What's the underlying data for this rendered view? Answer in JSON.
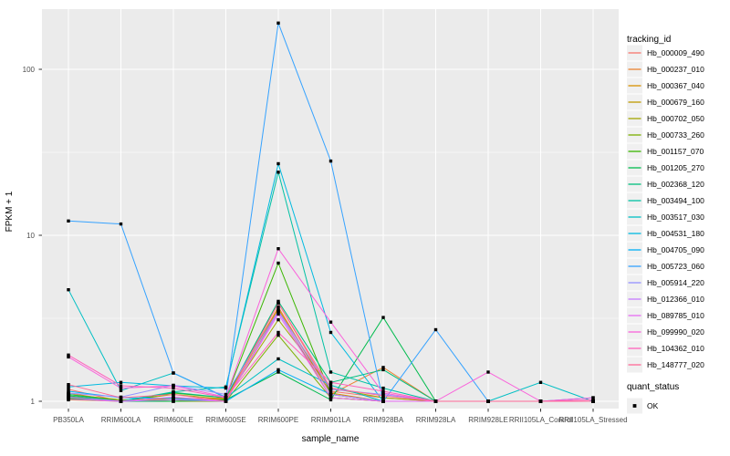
{
  "figure": {
    "background": "#FFFFFF",
    "panel_background": "#EBEBEB",
    "grid_color": "#FFFFFF",
    "tick_color": "#333333",
    "axis_text_color": "#4D4D4D",
    "title_color": "#000000",
    "point_color": "#000000",
    "legend_key_background": "#F0F0F0"
  },
  "chart_data": {
    "type": "line",
    "title": "",
    "xlabel": "sample_name",
    "ylabel": "FPKM + 1",
    "y_scale": "log10",
    "grid": true,
    "legend_position": "right",
    "y_ticks": [
      {
        "label": "1",
        "value": 1
      },
      {
        "label": "10",
        "value": 10
      },
      {
        "label": "100",
        "value": 100
      }
    ],
    "y_minor_ticks": [
      3.1623,
      31.623
    ],
    "ylim": [
      0.93,
      232
    ],
    "categories": [
      "PB350LA",
      "RRIM600LA",
      "RRIM600LE",
      "RRIM600SE",
      "RRIM600PE",
      "RRIM901LA",
      "RRIM928BA",
      "RRIM928LA",
      "RRIM928LE",
      "RRII105LA_Control",
      "RRII105LA_Stressed"
    ],
    "series": [
      {
        "name": "Hb_000009_490",
        "color": "#F8766D",
        "values": [
          1.18,
          1.0,
          1.02,
          1.05,
          3.9,
          1.15,
          1.05,
          1.0,
          1.0,
          1.0,
          1.0
        ]
      },
      {
        "name": "Hb_000237_010",
        "color": "#EA8331",
        "values": [
          1.12,
          1.0,
          1.05,
          1.02,
          3.7,
          1.1,
          1.6,
          1.0,
          1.0,
          1.0,
          1.0
        ]
      },
      {
        "name": "Hb_000367_040",
        "color": "#D89000",
        "values": [
          1.05,
          1.0,
          1.0,
          1.05,
          3.6,
          1.12,
          1.0,
          1.0,
          1.0,
          1.0,
          1.0
        ]
      },
      {
        "name": "Hb_000679_160",
        "color": "#C09B00",
        "values": [
          1.02,
          1.0,
          1.04,
          1.0,
          3.5,
          1.05,
          1.0,
          1.0,
          1.0,
          1.0,
          1.0
        ]
      },
      {
        "name": "Hb_000702_050",
        "color": "#A3A500",
        "values": [
          1.06,
          1.0,
          1.1,
          1.03,
          3.1,
          1.2,
          1.05,
          1.0,
          1.0,
          1.0,
          1.0
        ]
      },
      {
        "name": "Hb_000733_260",
        "color": "#7CAE00",
        "values": [
          1.1,
          1.02,
          1.0,
          1.0,
          2.5,
          1.05,
          1.0,
          1.0,
          1.0,
          1.0,
          1.0
        ]
      },
      {
        "name": "Hb_001157_070",
        "color": "#39B600",
        "values": [
          1.08,
          1.0,
          1.12,
          1.05,
          6.8,
          1.1,
          1.0,
          1.0,
          1.0,
          1.0,
          1.0
        ]
      },
      {
        "name": "Hb_001205_270",
        "color": "#00BB4E",
        "values": [
          1.04,
          1.0,
          1.0,
          1.02,
          1.5,
          1.02,
          3.2,
          1.0,
          1.0,
          1.0,
          1.0
        ]
      },
      {
        "name": "Hb_002368_120",
        "color": "#00BF7D",
        "values": [
          1.1,
          1.0,
          1.13,
          1.05,
          4.0,
          1.3,
          1.55,
          1.0,
          1.0,
          1.0,
          1.0
        ]
      },
      {
        "name": "Hb_003494_100",
        "color": "#00C1A3",
        "values": [
          1.07,
          1.0,
          1.14,
          1.22,
          24.0,
          1.5,
          1.2,
          1.0,
          1.0,
          1.0,
          1.0
        ]
      },
      {
        "name": "Hb_003517_030",
        "color": "#00BFC4",
        "values": [
          4.7,
          1.16,
          1.48,
          1.05,
          1.8,
          1.25,
          1.0,
          1.0,
          1.0,
          1.3,
          1.0
        ]
      },
      {
        "name": "Hb_004531_180",
        "color": "#00BAE0",
        "values": [
          1.22,
          1.3,
          1.24,
          1.2,
          27.0,
          2.6,
          1.0,
          1.0,
          1.0,
          1.0,
          1.05
        ]
      },
      {
        "name": "Hb_004705_090",
        "color": "#00B0F6",
        "values": [
          1.15,
          1.05,
          1.04,
          1.0,
          1.55,
          1.1,
          1.0,
          1.0,
          1.0,
          1.0,
          1.0
        ]
      },
      {
        "name": "Hb_005723_060",
        "color": "#35A2FF",
        "values": [
          12.2,
          11.7,
          1.48,
          1.06,
          190.0,
          28.0,
          1.0,
          2.7,
          1.0,
          1.0,
          1.0
        ]
      },
      {
        "name": "Hb_005914_220",
        "color": "#9590FF",
        "values": [
          1.12,
          1.06,
          1.25,
          1.1,
          3.5,
          1.18,
          1.1,
          1.0,
          1.0,
          1.0,
          1.0
        ]
      },
      {
        "name": "Hb_012366_010",
        "color": "#C77CFF",
        "values": [
          1.06,
          1.0,
          1.02,
          1.0,
          3.45,
          1.1,
          1.0,
          1.0,
          1.0,
          1.0,
          1.0
        ]
      },
      {
        "name": "Hb_089785_010",
        "color": "#E76BF3",
        "values": [
          1.03,
          1.0,
          1.06,
          1.0,
          3.35,
          1.05,
          1.0,
          1.0,
          1.0,
          1.0,
          1.0
        ]
      },
      {
        "name": "Hb_099990_020",
        "color": "#FA62DB",
        "values": [
          1.85,
          1.2,
          1.24,
          1.06,
          8.3,
          3.0,
          1.12,
          1.0,
          1.5,
          1.0,
          1.05
        ]
      },
      {
        "name": "Hb_104362_010",
        "color": "#FF62BC",
        "values": [
          1.9,
          1.24,
          1.2,
          1.05,
          2.6,
          1.3,
          1.15,
          1.0,
          1.0,
          1.0,
          1.02
        ]
      },
      {
        "name": "Hb_148777_020",
        "color": "#FF6A98",
        "values": [
          1.26,
          1.05,
          1.1,
          1.0,
          3.9,
          1.2,
          1.08,
          1.0,
          1.0,
          1.0,
          1.0
        ]
      }
    ],
    "point_shape": "square",
    "legends": {
      "tracking_id": {
        "title": "tracking_id"
      },
      "quant_status": {
        "title": "quant_status",
        "items": [
          {
            "label": "OK",
            "shape": "square",
            "color": "#000000"
          }
        ]
      }
    }
  }
}
